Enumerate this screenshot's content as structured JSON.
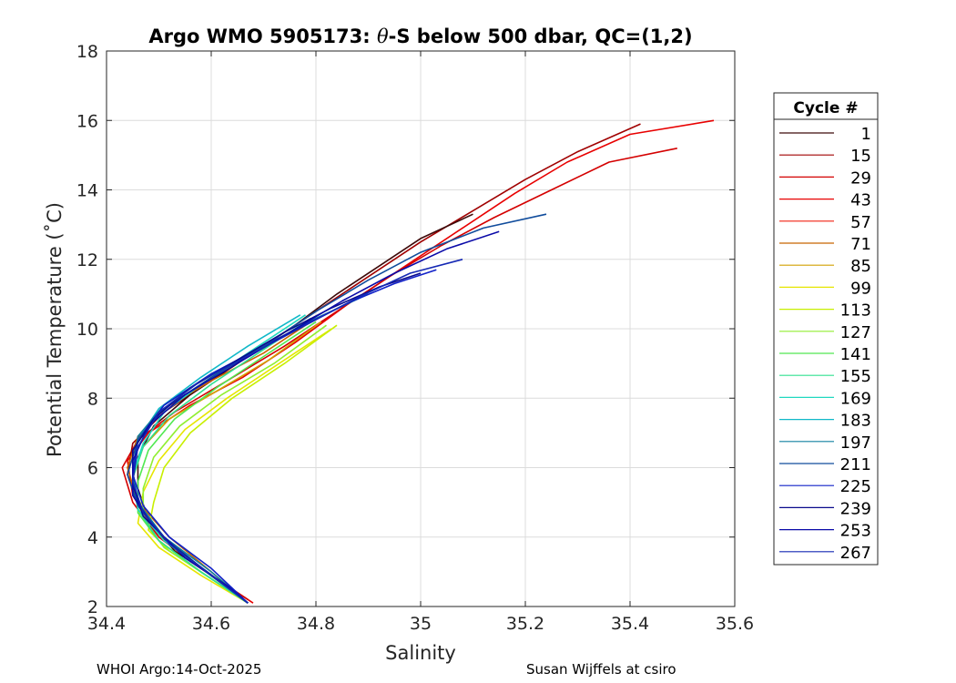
{
  "chart_data": {
    "type": "line",
    "title_prefix": "Argo WMO 5905173: ",
    "title_symbol": "θ",
    "title_suffix": "-S below 500 dbar,  QC=(1,2)",
    "xlabel": "Salinity",
    "ylabel": "Potential Temperature (˚C)",
    "xlim": [
      34.4,
      35.6
    ],
    "ylim": [
      2,
      18
    ],
    "xticks": [
      34.4,
      34.6,
      34.8,
      35,
      35.2,
      35.4,
      35.6
    ],
    "xtick_labels": [
      "34.4",
      "34.6",
      "34.8",
      "35",
      "35.2",
      "35.4",
      "35.6"
    ],
    "yticks": [
      2,
      4,
      6,
      8,
      10,
      12,
      14,
      16,
      18
    ],
    "ytick_labels": [
      "2",
      "4",
      "6",
      "8",
      "10",
      "12",
      "14",
      "16",
      "18"
    ],
    "grid": true,
    "legend_title": "Cycle #",
    "legend_position": "right-outside",
    "series": [
      {
        "name": "1",
        "color": "#3d0a0a"
      },
      {
        "name": "15",
        "color": "#a00000"
      },
      {
        "name": "29",
        "color": "#d40000"
      },
      {
        "name": "43",
        "color": "#e80000"
      },
      {
        "name": "57",
        "color": "#f02010"
      },
      {
        "name": "71",
        "color": "#c86400"
      },
      {
        "name": "85",
        "color": "#d2a000"
      },
      {
        "name": "99",
        "color": "#e6e600"
      },
      {
        "name": "113",
        "color": "#c8ef00"
      },
      {
        "name": "127",
        "color": "#90ee30"
      },
      {
        "name": "141",
        "color": "#50e850"
      },
      {
        "name": "155",
        "color": "#30e090"
      },
      {
        "name": "169",
        "color": "#20d8c0"
      },
      {
        "name": "183",
        "color": "#10b8c8"
      },
      {
        "name": "197",
        "color": "#1080a0"
      },
      {
        "name": "211",
        "color": "#104c9c"
      },
      {
        "name": "225",
        "color": "#1020c8"
      },
      {
        "name": "239",
        "color": "#0a0a8c"
      },
      {
        "name": "253",
        "color": "#0a0aa8"
      },
      {
        "name": "267",
        "color": "#1428b4"
      }
    ],
    "profiles": [
      {
        "color": "#e80000",
        "points": [
          [
            35.56,
            16.0
          ],
          [
            35.4,
            15.6
          ],
          [
            35.28,
            14.8
          ],
          [
            35.18,
            13.9
          ],
          [
            35.08,
            12.9
          ],
          [
            34.97,
            11.8
          ],
          [
            34.86,
            10.7
          ],
          [
            34.76,
            9.6
          ],
          [
            34.66,
            8.6
          ],
          [
            34.56,
            7.8
          ],
          [
            34.48,
            7.0
          ],
          [
            34.44,
            6.2
          ],
          [
            34.45,
            5.2
          ],
          [
            34.49,
            4.2
          ],
          [
            34.56,
            3.3
          ],
          [
            34.68,
            2.1
          ]
        ]
      },
      {
        "color": "#d40000",
        "points": [
          [
            35.49,
            15.2
          ],
          [
            35.36,
            14.8
          ],
          [
            35.25,
            14.0
          ],
          [
            35.14,
            13.2
          ],
          [
            35.04,
            12.4
          ],
          [
            34.94,
            11.5
          ],
          [
            34.84,
            10.5
          ],
          [
            34.74,
            9.5
          ],
          [
            34.63,
            8.5
          ],
          [
            34.53,
            7.6
          ],
          [
            34.46,
            6.8
          ],
          [
            34.43,
            6.0
          ],
          [
            34.45,
            5.0
          ],
          [
            34.5,
            4.0
          ],
          [
            34.58,
            3.1
          ],
          [
            34.67,
            2.2
          ]
        ]
      },
      {
        "color": "#a00000",
        "points": [
          [
            35.42,
            15.9
          ],
          [
            35.3,
            15.1
          ],
          [
            35.2,
            14.3
          ],
          [
            35.1,
            13.4
          ],
          [
            35.0,
            12.5
          ],
          [
            34.9,
            11.5
          ],
          [
            34.8,
            10.5
          ],
          [
            34.7,
            9.5
          ],
          [
            34.6,
            8.5
          ],
          [
            34.51,
            7.6
          ],
          [
            34.45,
            6.7
          ],
          [
            34.44,
            5.8
          ],
          [
            34.46,
            4.9
          ],
          [
            34.51,
            4.0
          ],
          [
            34.59,
            3.0
          ],
          [
            34.67,
            2.1
          ]
        ]
      },
      {
        "color": "#3d0a0a",
        "points": [
          [
            35.1,
            13.3
          ],
          [
            35.0,
            12.6
          ],
          [
            34.92,
            11.8
          ],
          [
            34.84,
            11.0
          ],
          [
            34.76,
            10.1
          ],
          [
            34.66,
            9.1
          ],
          [
            34.56,
            8.1
          ],
          [
            34.49,
            7.2
          ],
          [
            34.46,
            6.3
          ],
          [
            34.46,
            5.4
          ],
          [
            34.48,
            4.5
          ],
          [
            34.53,
            3.6
          ],
          [
            34.62,
            2.7
          ],
          [
            34.67,
            2.1
          ]
        ]
      },
      {
        "color": "#c86400",
        "points": [
          [
            34.8,
            10.3
          ],
          [
            34.7,
            9.3
          ],
          [
            34.6,
            8.5
          ],
          [
            34.51,
            7.7
          ],
          [
            34.46,
            6.9
          ],
          [
            34.44,
            6.0
          ],
          [
            34.46,
            5.0
          ],
          [
            34.52,
            4.0
          ],
          [
            34.6,
            3.0
          ],
          [
            34.67,
            2.1
          ]
        ]
      },
      {
        "color": "#d2a000",
        "points": [
          [
            34.81,
            10.2
          ],
          [
            34.71,
            9.1
          ],
          [
            34.61,
            8.2
          ],
          [
            34.52,
            7.4
          ],
          [
            34.47,
            6.6
          ],
          [
            34.45,
            5.7
          ],
          [
            34.46,
            4.8
          ],
          [
            34.5,
            3.9
          ],
          [
            34.58,
            3.0
          ],
          [
            34.67,
            2.1
          ]
        ]
      },
      {
        "color": "#e6e600",
        "points": [
          [
            34.83,
            10.0
          ],
          [
            34.73,
            9.0
          ],
          [
            34.63,
            8.0
          ],
          [
            34.55,
            7.1
          ],
          [
            34.5,
            6.2
          ],
          [
            34.47,
            5.3
          ],
          [
            34.46,
            4.4
          ],
          [
            34.5,
            3.7
          ],
          [
            34.58,
            2.9
          ],
          [
            34.67,
            2.1
          ]
        ]
      },
      {
        "color": "#c8ef00",
        "points": [
          [
            34.84,
            10.1
          ],
          [
            34.74,
            9.0
          ],
          [
            34.64,
            8.0
          ],
          [
            34.56,
            7.0
          ],
          [
            34.51,
            6.0
          ],
          [
            34.49,
            5.0
          ],
          [
            34.48,
            4.2
          ],
          [
            34.52,
            3.6
          ],
          [
            34.6,
            2.8
          ],
          [
            34.67,
            2.1
          ]
        ]
      },
      {
        "color": "#90ee30",
        "points": [
          [
            34.82,
            10.1
          ],
          [
            34.72,
            9.0
          ],
          [
            34.62,
            8.1
          ],
          [
            34.54,
            7.2
          ],
          [
            34.49,
            6.3
          ],
          [
            34.47,
            5.4
          ],
          [
            34.47,
            4.5
          ],
          [
            34.51,
            3.7
          ],
          [
            34.59,
            2.9
          ],
          [
            34.67,
            2.1
          ]
        ]
      },
      {
        "color": "#50e850",
        "points": [
          [
            34.8,
            10.2
          ],
          [
            34.7,
            9.2
          ],
          [
            34.61,
            8.3
          ],
          [
            34.53,
            7.4
          ],
          [
            34.48,
            6.5
          ],
          [
            34.46,
            5.6
          ],
          [
            34.46,
            4.7
          ],
          [
            34.5,
            3.9
          ],
          [
            34.58,
            3.0
          ],
          [
            34.67,
            2.1
          ]
        ]
      },
      {
        "color": "#30e090",
        "points": [
          [
            34.79,
            10.3
          ],
          [
            34.69,
            9.3
          ],
          [
            34.6,
            8.4
          ],
          [
            34.52,
            7.5
          ],
          [
            34.47,
            6.6
          ],
          [
            34.45,
            5.7
          ],
          [
            34.46,
            4.8
          ],
          [
            34.5,
            3.9
          ],
          [
            34.58,
            3.0
          ],
          [
            34.67,
            2.1
          ]
        ]
      },
      {
        "color": "#20d8c0",
        "points": [
          [
            34.78,
            10.4
          ],
          [
            34.68,
            9.4
          ],
          [
            34.59,
            8.5
          ],
          [
            34.51,
            7.6
          ],
          [
            34.47,
            6.7
          ],
          [
            34.45,
            5.8
          ],
          [
            34.46,
            4.8
          ],
          [
            34.51,
            3.9
          ],
          [
            34.59,
            3.0
          ],
          [
            34.67,
            2.1
          ]
        ]
      },
      {
        "color": "#10b8c8",
        "points": [
          [
            34.77,
            10.4
          ],
          [
            34.67,
            9.5
          ],
          [
            34.58,
            8.6
          ],
          [
            34.5,
            7.7
          ],
          [
            34.46,
            6.8
          ],
          [
            34.45,
            5.8
          ],
          [
            34.46,
            4.9
          ],
          [
            34.51,
            4.0
          ],
          [
            34.59,
            3.0
          ],
          [
            34.67,
            2.1
          ]
        ]
      },
      {
        "color": "#1080a0",
        "points": [
          [
            34.9,
            11.0
          ],
          [
            34.8,
            10.3
          ],
          [
            34.7,
            9.5
          ],
          [
            34.6,
            8.7
          ],
          [
            34.51,
            7.8
          ],
          [
            34.46,
            6.9
          ],
          [
            34.45,
            5.9
          ],
          [
            34.46,
            5.0
          ],
          [
            34.51,
            4.0
          ],
          [
            34.6,
            3.0
          ],
          [
            34.67,
            2.1
          ]
        ]
      },
      {
        "color": "#1020c8",
        "points": [
          [
            35.03,
            11.7
          ],
          [
            34.95,
            11.3
          ],
          [
            34.87,
            10.8
          ],
          [
            34.79,
            10.2
          ],
          [
            34.7,
            9.5
          ],
          [
            34.6,
            8.7
          ],
          [
            34.51,
            7.8
          ],
          [
            34.46,
            6.8
          ],
          [
            34.45,
            5.8
          ],
          [
            34.47,
            4.9
          ],
          [
            34.52,
            4.0
          ],
          [
            34.6,
            3.1
          ],
          [
            34.67,
            2.1
          ]
        ]
      },
      {
        "color": "#104c9c",
        "points": [
          [
            35.24,
            13.3
          ],
          [
            35.12,
            12.9
          ],
          [
            35.0,
            12.2
          ],
          [
            34.9,
            11.4
          ],
          [
            34.8,
            10.5
          ],
          [
            34.7,
            9.5
          ],
          [
            34.6,
            8.6
          ],
          [
            34.51,
            7.7
          ],
          [
            34.46,
            6.8
          ],
          [
            34.44,
            5.8
          ],
          [
            34.46,
            4.9
          ],
          [
            34.51,
            4.0
          ],
          [
            34.59,
            3.0
          ],
          [
            34.67,
            2.1
          ]
        ]
      },
      {
        "color": "#0a0a8c",
        "points": [
          [
            35.0,
            11.6
          ],
          [
            34.92,
            11.2
          ],
          [
            34.83,
            10.6
          ],
          [
            34.74,
            9.9
          ],
          [
            34.65,
            9.1
          ],
          [
            34.56,
            8.3
          ],
          [
            34.49,
            7.4
          ],
          [
            34.45,
            6.5
          ],
          [
            34.45,
            5.5
          ],
          [
            34.47,
            4.6
          ],
          [
            34.53,
            3.7
          ],
          [
            34.61,
            2.8
          ],
          [
            34.67,
            2.1
          ]
        ]
      },
      {
        "color": "#0a0aa8",
        "points": [
          [
            35.15,
            12.8
          ],
          [
            35.05,
            12.3
          ],
          [
            34.95,
            11.6
          ],
          [
            34.85,
            10.8
          ],
          [
            34.75,
            9.9
          ],
          [
            34.65,
            9.0
          ],
          [
            34.55,
            8.1
          ],
          [
            34.48,
            7.2
          ],
          [
            34.45,
            6.2
          ],
          [
            34.45,
            5.2
          ],
          [
            34.49,
            4.3
          ],
          [
            34.55,
            3.4
          ],
          [
            34.63,
            2.6
          ],
          [
            34.67,
            2.1
          ]
        ]
      },
      {
        "color": "#1428b4",
        "points": [
          [
            35.08,
            12.0
          ],
          [
            34.98,
            11.6
          ],
          [
            34.88,
            10.9
          ],
          [
            34.78,
            10.1
          ],
          [
            34.68,
            9.3
          ],
          [
            34.58,
            8.5
          ],
          [
            34.5,
            7.6
          ],
          [
            34.46,
            6.6
          ],
          [
            34.45,
            5.6
          ],
          [
            34.47,
            4.7
          ],
          [
            34.52,
            3.8
          ],
          [
            34.6,
            2.9
          ],
          [
            34.67,
            2.1
          ]
        ]
      }
    ]
  },
  "footer": {
    "left": "WHOI Argo:14-Oct-2025",
    "right": "Susan Wijffels at csiro"
  }
}
